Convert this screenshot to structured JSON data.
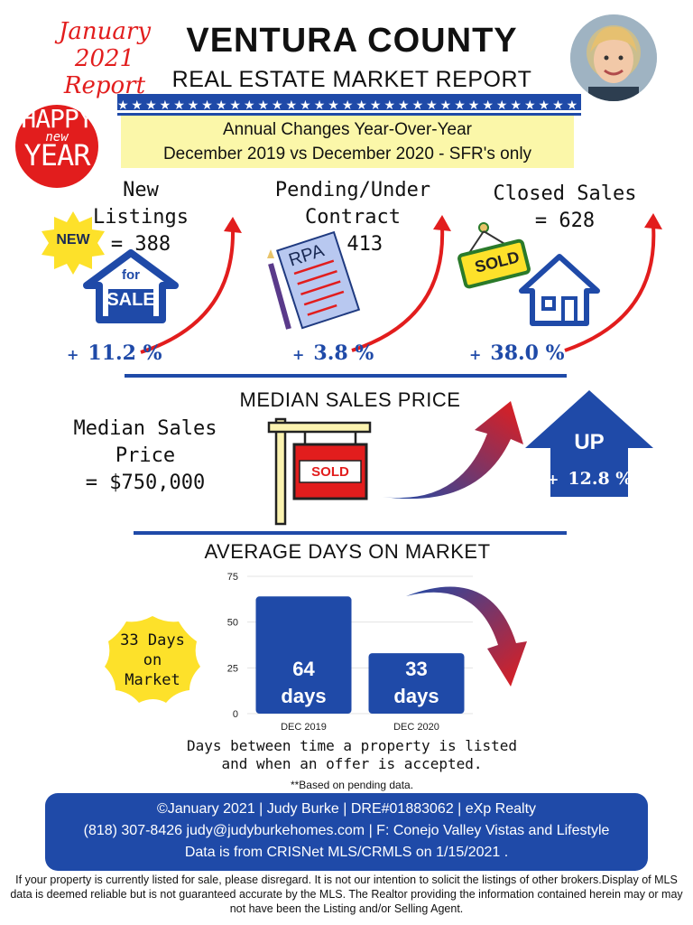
{
  "header": {
    "corner_line1": "January 2021",
    "corner_line2": "Report",
    "title": "VENTURA COUNTY",
    "subtitle": "REAL ESTATE MARKET REPORT",
    "stars": "★★★★★★★★★★★★★★★★★★★★★★★★★★★★★★★★★★★★★★★★",
    "happy_line1": "HAPPY",
    "happy_line2": "new",
    "happy_line3": "YEAR",
    "banner_line1": "Annual Changes Year-Over-Year",
    "banner_line2": "December 2019 vs December 2020 - SFR's only"
  },
  "stats": {
    "new_listings": {
      "label": "New Listings",
      "value": "= 388",
      "change_sign": "+",
      "change": "11.2 %",
      "badge": "NEW",
      "sign_line1": "for",
      "sign_line2": "SALE"
    },
    "pending": {
      "label": "Pending/Under Contract",
      "value": "= 413",
      "change_sign": "+",
      "change": "3.8 %",
      "doc_label": "RPA"
    },
    "closed": {
      "label": "Closed Sales",
      "value": "= 628",
      "change_sign": "+",
      "change": "38.0 %",
      "sign": "SOLD"
    }
  },
  "median": {
    "section_title": "MEDIAN SALES PRICE",
    "label": "Median Sales Price",
    "value": "= $750,000",
    "sign": "SOLD",
    "up_label": "UP",
    "change_sign": "+",
    "change": "12.8 %"
  },
  "dom": {
    "section_title": "AVERAGE DAYS ON MARKET",
    "badge_line1": "33 Days",
    "badge_line2": "on",
    "badge_line3": "Market",
    "caption_line1": "Days between time a property is listed",
    "caption_line2": "and when an offer is accepted.",
    "note": "**Based on pending data."
  },
  "chart_data": {
    "type": "bar",
    "categories": [
      "DEC 2019",
      "DEC 2020"
    ],
    "values": [
      64,
      33
    ],
    "bar_labels": [
      "64 days",
      "33 days"
    ],
    "bar_labels_line1": [
      "64",
      "33"
    ],
    "bar_labels_line2": [
      "days",
      "days"
    ],
    "yticks": [
      0,
      25,
      50,
      75
    ],
    "ylim": [
      0,
      75
    ],
    "grid": true,
    "color": "#1f4aa8"
  },
  "footer": {
    "line1": "©January 2021  |  Judy Burke  |  DRE#01883062  |  eXp Realty",
    "line2": "(818) 307-8426  judy@judyburkehomes.com | F: Conejo Valley Vistas and Lifestyle",
    "line3": "Data is from CRISNet MLS/CRMLS on 1/15/2021 ."
  },
  "disclaimer": "If your property is currently listed for sale, please disregard. It is not our intention to solicit the listings of other brokers.Display of MLS data is deemed reliable but is not guaranteed accurate by the MLS. The Realtor providing the information contained herein may or may not have been the Listing and/or Selling Agent.",
  "colors": {
    "brand_blue": "#1f4aa8",
    "accent_red": "#e21d1d",
    "highlight_yellow": "#fbf7a9",
    "badge_yellow": "#fde12a"
  },
  "icons": [
    "avatar-photo",
    "happy-new-year-badge",
    "new-starburst-icon",
    "for-sale-house-icon",
    "contract-document-icon",
    "sold-sign-icon",
    "house-outline-icon",
    "growth-arrow-icon",
    "sold-post-sign-icon",
    "up-arrow-icon",
    "down-arrow-icon"
  ]
}
